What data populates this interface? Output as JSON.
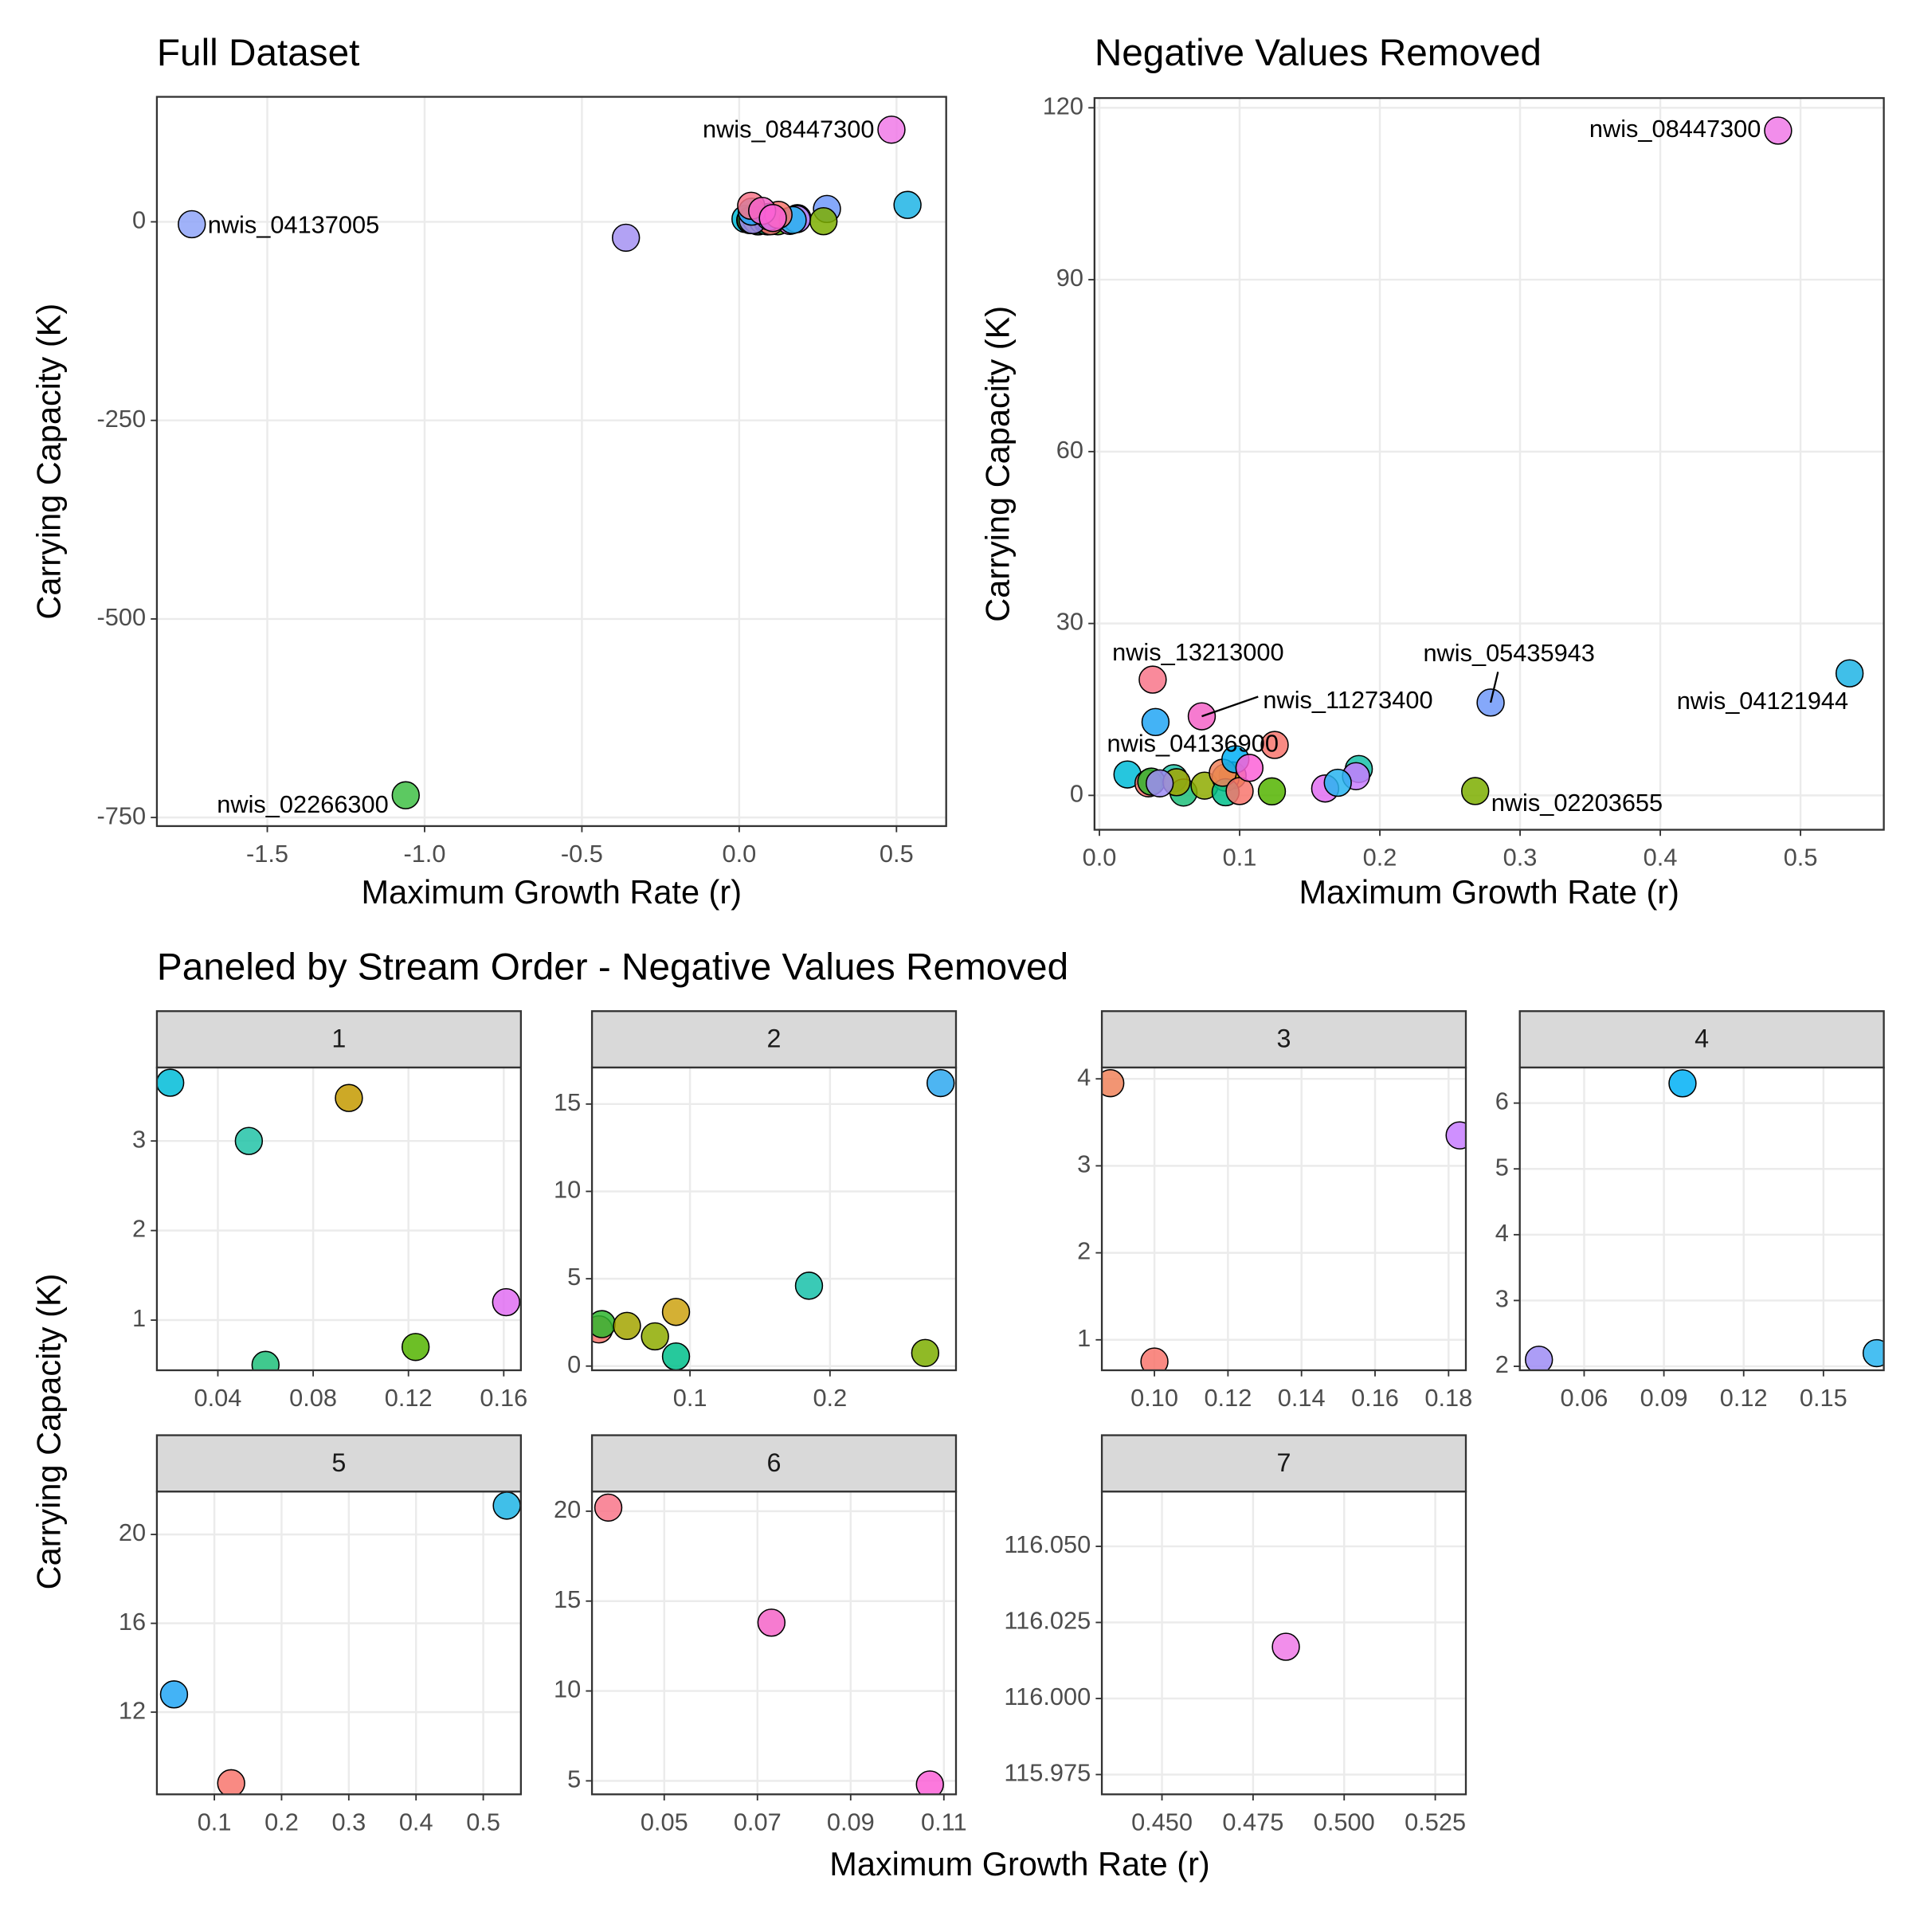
{
  "chart_data": [
    {
      "type": "scatter",
      "title": "Full Dataset",
      "xlabel": "Maximum Growth Rate (r)",
      "ylabel": "Carrying Capacity (K)",
      "x": [
        0.02,
        0.053,
        0.095,
        0.06,
        0.123,
        0.161,
        0.279,
        0.035,
        0.037,
        0.055,
        0.075,
        0.09,
        0.09,
        0.185,
        0.268,
        0.088,
        0.1,
        0.183,
        0.043,
        0.097,
        0.17,
        0.04,
        0.125,
        0.535,
        0.038,
        0.073,
        0.107,
        0.484,
        -1.74,
        -0.36,
        -1.06
      ],
      "values": [
        3.65,
        3.0,
        3.48,
        0.5,
        0.7,
        1.2,
        16.2,
        2.1,
        2.4,
        2.3,
        1.7,
        3.1,
        0.55,
        4.6,
        0.75,
        3.95,
        0.75,
        3.35,
        2.1,
        6.3,
        2.2,
        12.8,
        8.8,
        21.3,
        20.2,
        13.8,
        4.8,
        116.017,
        -3,
        -20,
        -722
      ],
      "colors": [
        "#00BCD8",
        "#22C3A7",
        "#C49A00",
        "#1FBF7A",
        "#53B400",
        "#E06EF2",
        "#7099F9",
        "#F8766D",
        "#2EB52E",
        "#A3A500",
        "#8EAB00",
        "#CCA210",
        "#00C08B",
        "#18C1A9",
        "#7CAE00",
        "#F0825A",
        "#F8766D",
        "#C77CFF",
        "#9D8CF5",
        "#00B0F6",
        "#28B4F0",
        "#22A6F5",
        "#F8766D",
        "#1FB4E5",
        "#F8768A",
        "#F564C8",
        "#FB61D7",
        "#F07AE8",
        "#8FA5F8",
        "#A592F2",
        "#3FBF45"
      ],
      "labels": [
        null,
        null,
        null,
        null,
        null,
        null,
        null,
        null,
        null,
        null,
        null,
        null,
        null,
        null,
        null,
        null,
        null,
        null,
        null,
        null,
        null,
        null,
        null,
        null,
        null,
        null,
        null,
        "nwis_08447300",
        "nwis_04137005",
        null,
        "nwis_02266300"
      ],
      "xlim": [
        -1.851,
        0.658
      ],
      "ylim": [
        -760.8,
        157.4
      ],
      "xticks": [
        {
          "value": -1.5,
          "label": "-1.5"
        },
        {
          "value": -1.0,
          "label": "-1.0"
        },
        {
          "value": -0.5,
          "label": "-0.5"
        },
        {
          "value": 0.0,
          "label": "0.0"
        },
        {
          "value": 0.5,
          "label": "0.5"
        }
      ],
      "yticks": [
        0,
        -250,
        -500,
        -750
      ],
      "grid": true
    },
    {
      "type": "scatter",
      "title": "Negative Values Removed",
      "xlabel": "Maximum Growth Rate (r)",
      "ylabel": "Carrying Capacity (K)",
      "x": [
        0.02,
        0.053,
        0.095,
        0.06,
        0.123,
        0.161,
        0.279,
        0.035,
        0.037,
        0.055,
        0.075,
        0.09,
        0.09,
        0.185,
        0.268,
        0.088,
        0.1,
        0.183,
        0.043,
        0.097,
        0.17,
        0.04,
        0.125,
        0.535,
        0.038,
        0.073,
        0.107,
        0.484
      ],
      "values": [
        3.65,
        3.0,
        3.48,
        0.5,
        0.7,
        1.2,
        16.2,
        2.1,
        2.4,
        2.3,
        1.7,
        3.1,
        0.55,
        4.6,
        0.75,
        3.95,
        0.75,
        3.35,
        2.1,
        6.3,
        2.2,
        12.8,
        8.8,
        21.3,
        20.2,
        13.8,
        4.8,
        116.017
      ],
      "colors": [
        "#00BCD8",
        "#22C3A7",
        "#C49A00",
        "#1FBF7A",
        "#53B400",
        "#E06EF2",
        "#7099F9",
        "#F8766D",
        "#2EB52E",
        "#A3A500",
        "#8EAB00",
        "#CCA210",
        "#00C08B",
        "#18C1A9",
        "#7CAE00",
        "#F0825A",
        "#F8766D",
        "#C77CFF",
        "#9D8CF5",
        "#00B0F6",
        "#28B4F0",
        "#22A6F5",
        "#F8766D",
        "#1FB4E5",
        "#F8768A",
        "#F564C8",
        "#FB61D7",
        "#F07AE8"
      ],
      "labels": [
        null,
        null,
        null,
        null,
        null,
        null,
        "nwis_05435943",
        null,
        null,
        null,
        null,
        null,
        null,
        null,
        "nwis_02203655",
        null,
        null,
        null,
        "nwis_04136900",
        null,
        null,
        null,
        null,
        "nwis_04121944",
        "nwis_13213000",
        "nwis_11273400",
        null,
        "nwis_08447300"
      ],
      "xlim": [
        -0.0035,
        0.5594
      ],
      "ylim": [
        -6.0,
        121.7
      ],
      "xticks": [
        {
          "value": 0.0,
          "label": "0.0"
        },
        0.1,
        0.2,
        0.3,
        0.4,
        0.5
      ],
      "yticks": [
        0,
        30,
        60,
        90,
        120
      ],
      "grid": true
    },
    {
      "type": "facet",
      "title": "Paneled by Stream Order - Negative Values Removed",
      "xlabel": "Maximum Growth Rate (r)",
      "ylabel": "Carrying Capacity (K)",
      "grid": true,
      "panels": [
        {
          "strip": "1",
          "x": [
            0.02,
            0.053,
            0.095,
            0.06,
            0.123,
            0.161
          ],
          "values": [
            3.65,
            3.0,
            3.48,
            0.5,
            0.7,
            1.2
          ],
          "colors": [
            "#00BCD8",
            "#22C3A7",
            "#C49A00",
            "#1FBF7A",
            "#53B400",
            "#E06EF2"
          ],
          "xlim": [
            0.0144,
            0.1672
          ],
          "ylim": [
            0.44,
            3.82
          ],
          "xticks": [
            0.04,
            0.08,
            0.12,
            0.16
          ],
          "yticks": [
            1,
            2,
            3
          ]
        },
        {
          "strip": "2",
          "x": [
            0.279,
            0.035,
            0.037,
            0.055,
            0.075,
            0.09,
            0.09,
            0.185,
            0.268
          ],
          "values": [
            16.2,
            2.1,
            2.4,
            2.3,
            1.7,
            3.1,
            0.55,
            4.6,
            0.75
          ],
          "colors": [
            "#2EA8F0",
            "#F8766D",
            "#2EB52E",
            "#A3A500",
            "#8EAB00",
            "#CCA210",
            "#00C08B",
            "#18C1A9",
            "#7CAE00"
          ],
          "xlim": [
            0.03,
            0.29
          ],
          "ylim": [
            -0.24,
            17.09
          ],
          "xticks": [
            0.1,
            0.2
          ],
          "yticks": [
            0,
            5,
            10,
            15
          ]
        },
        {
          "strip": "3",
          "x": [
            0.088,
            0.1,
            0.183
          ],
          "values": [
            3.95,
            0.75,
            3.35
          ],
          "colors": [
            "#F0825A",
            "#F8766D",
            "#C77CFF"
          ],
          "xlim": [
            0.0857,
            0.1847
          ],
          "ylim": [
            0.65,
            4.13
          ],
          "xticks": [
            {
              "value": 0.1,
              "label": "0.10"
            },
            0.12,
            0.14,
            0.16,
            0.18
          ],
          "yticks": [
            1,
            2,
            3,
            4
          ]
        },
        {
          "strip": "4",
          "x": [
            0.043,
            0.097,
            0.17
          ],
          "values": [
            2.1,
            6.3,
            2.2
          ],
          "colors": [
            "#9D8CF5",
            "#00B0F6",
            "#28B4F0"
          ],
          "xlim": [
            0.0358,
            0.1727
          ],
          "ylim": [
            1.94,
            6.54
          ],
          "xticks": [
            0.06,
            0.09,
            0.12,
            0.15
          ],
          "yticks": [
            2,
            3,
            4,
            5,
            6
          ]
        },
        {
          "strip": "5",
          "x": [
            0.04,
            0.125,
            0.535
          ],
          "values": [
            12.8,
            8.8,
            21.3
          ],
          "colors": [
            "#22A6F5",
            "#F8766D",
            "#1FB4E5"
          ],
          "xlim": [
            0.0145,
            0.556
          ],
          "ylim": [
            8.3,
            21.93
          ],
          "xticks": [
            0.1,
            0.2,
            0.3,
            0.4,
            0.5
          ],
          "yticks": [
            12,
            16,
            20
          ]
        },
        {
          "strip": "6",
          "x": [
            0.038,
            0.073,
            0.107
          ],
          "values": [
            20.2,
            13.8,
            4.8
          ],
          "colors": [
            "#F8768A",
            "#F564C8",
            "#FB61D7"
          ],
          "xlim": [
            0.0345,
            0.1126
          ],
          "ylim": [
            4.25,
            21.09
          ],
          "xticks": [
            0.05,
            0.07,
            0.09,
            0.11
          ],
          "yticks": [
            5,
            10,
            15,
            20
          ]
        },
        {
          "strip": "7",
          "x": [
            0.484
          ],
          "values": [
            116.017
          ],
          "colors": [
            "#F07AE8"
          ],
          "xlim": [
            0.4335,
            0.5334
          ],
          "ylim": [
            115.9685,
            116.068
          ],
          "xticks": [
            {
              "value": 0.45,
              "label": "0.450"
            },
            {
              "value": 0.475,
              "label": "0.475"
            },
            {
              "value": 0.5,
              "label": "0.500"
            },
            {
              "value": 0.525,
              "label": "0.525"
            }
          ],
          "yticks": [
            {
              "value": 115.975,
              "label": "115.975"
            },
            {
              "value": 116.0,
              "label": "116.000"
            },
            {
              "value": 116.025,
              "label": "116.025"
            },
            {
              "value": 116.05,
              "label": "116.050"
            }
          ]
        }
      ]
    }
  ]
}
